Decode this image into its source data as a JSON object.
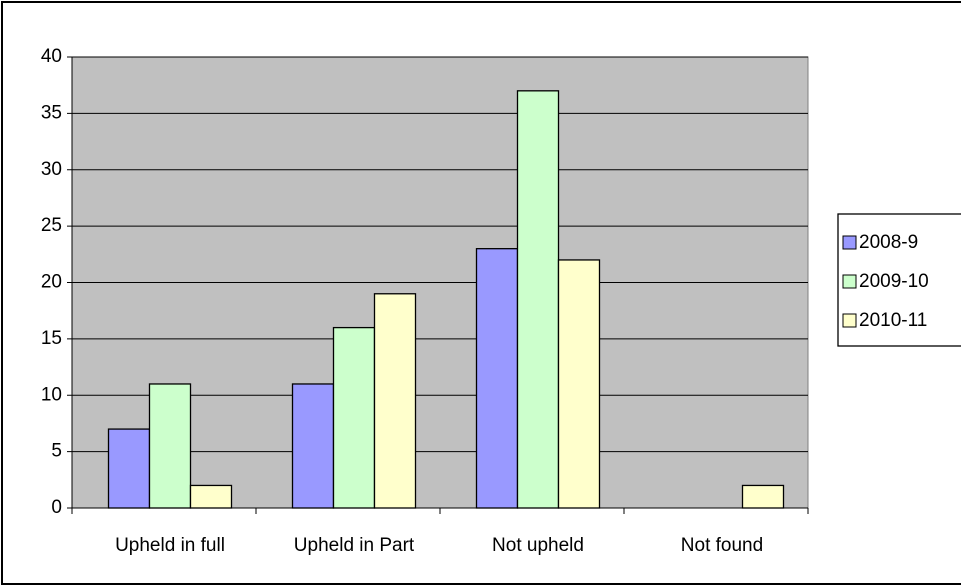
{
  "chart_data": {
    "type": "bar",
    "categories": [
      "Upheld in full",
      "Upheld in Part",
      "Not upheld",
      "Not found"
    ],
    "series": [
      {
        "name": "2008-9",
        "color": "#9999ff",
        "values": [
          7,
          11,
          23,
          0
        ]
      },
      {
        "name": "2009-10",
        "color": "#ccffcc",
        "values": [
          11,
          16,
          37,
          0
        ]
      },
      {
        "name": "2010-11",
        "color": "#ffffcc",
        "values": [
          2,
          19,
          22,
          2
        ]
      }
    ],
    "ylim": [
      0,
      40
    ],
    "yticks": [
      0,
      5,
      10,
      15,
      20,
      25,
      30,
      35,
      40
    ],
    "grid": true,
    "plot_background": "#c0c0c0",
    "legend": "right"
  }
}
